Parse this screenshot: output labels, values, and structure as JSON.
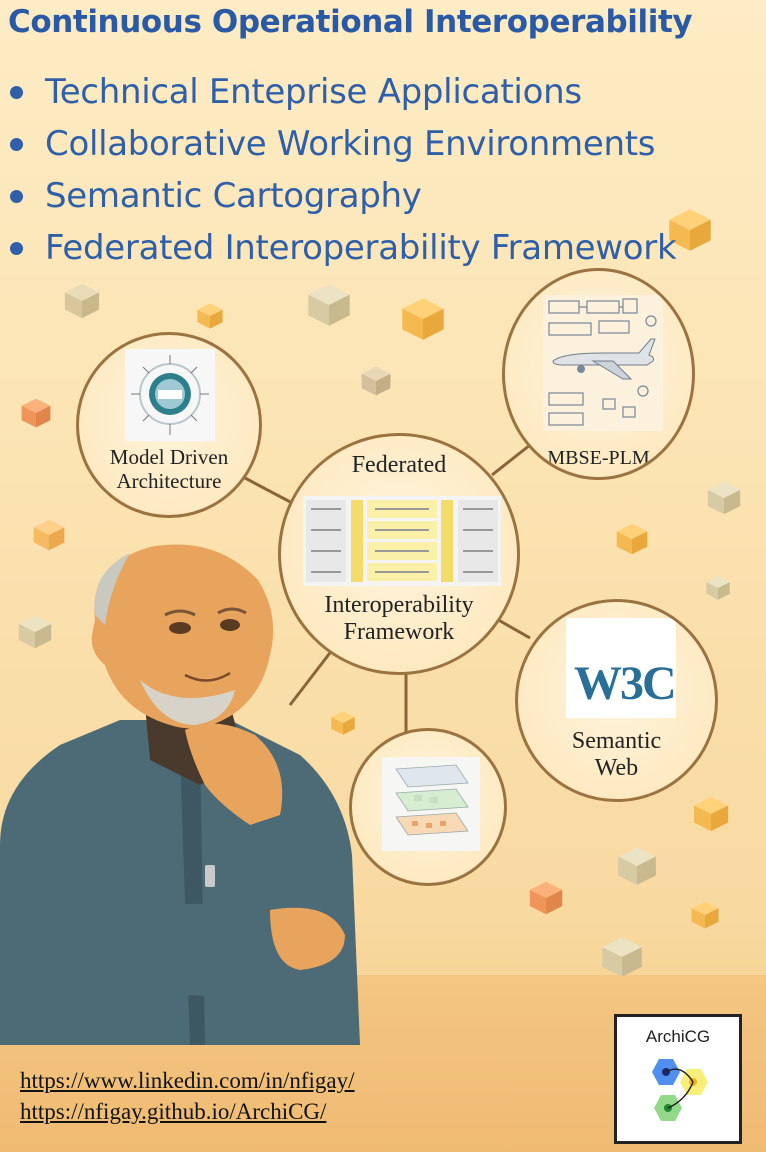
{
  "title": "Continuous Operational Interoperability",
  "bullets": [
    "Technical Enteprise Applications",
    "Collaborative Working Environments",
    "Semantic Cartography",
    "Federated Interoperability Framework"
  ],
  "nodes": {
    "mda": {
      "label_line1": "Model Driven",
      "label_line2": "Architecture",
      "image_caption": "Model Driven Architecture"
    },
    "federated": {
      "label_top": "Federated",
      "label_bottom1": "Interoperability",
      "label_bottom2": "Framework"
    },
    "mbse": {
      "label": "MBSE-PLM"
    },
    "semantic_web": {
      "logo_text": "W3C",
      "label_line1": "Semantic",
      "label_line2": "Web"
    },
    "cartography": {}
  },
  "links": [
    "https://www.linkedin.com/in/nfigay/",
    "https://nfigay.github.io/ArchiCG/"
  ],
  "logo": {
    "name": "ArchiCG"
  },
  "colors": {
    "accent": "#2f5fa8",
    "node_border": "#9a7340",
    "background": "#fbe2b0"
  },
  "icons": [
    "person-illustration",
    "cube-icon",
    "airplane-icon",
    "w3c-logo",
    "hexagon-icon"
  ]
}
